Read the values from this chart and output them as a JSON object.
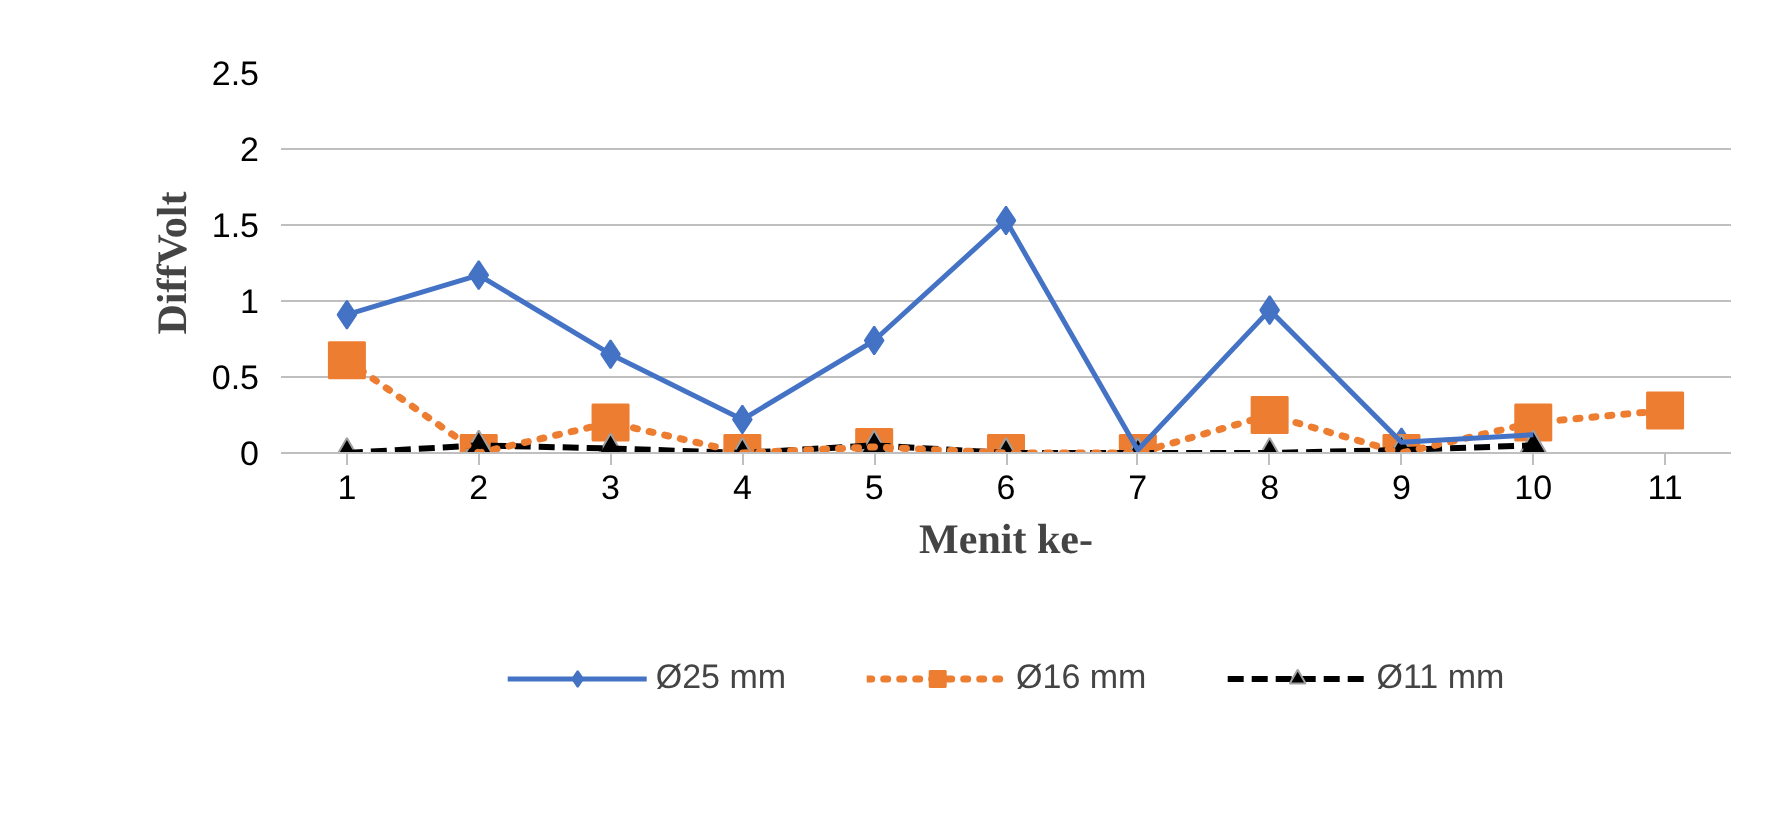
{
  "chart_data": {
    "type": "line",
    "xlabel": "Menit ke-",
    "ylabel": "DiffVolt",
    "categories": [
      "1",
      "2",
      "3",
      "4",
      "5",
      "6",
      "7",
      "8",
      "9",
      "10",
      "11"
    ],
    "ylim": [
      0,
      2.5
    ],
    "yticks": [
      0,
      0.5,
      1,
      1.5,
      2,
      2.5
    ],
    "grid": "y",
    "legend": "bottom",
    "series": [
      {
        "name": "Ø25 mm",
        "color": "#4472c4",
        "marker": "diamond",
        "line_style": "solid",
        "values": [
          0.91,
          1.17,
          0.65,
          0.22,
          0.74,
          1.53,
          0.02,
          0.94,
          0.07,
          0.12,
          null
        ]
      },
      {
        "name": "Ø16 mm",
        "color": "#ed7d31",
        "marker": "square",
        "line_style": "dotted",
        "values": [
          0.61,
          0,
          0.2,
          0,
          0.04,
          0,
          0,
          0.25,
          0,
          0.2,
          0.28
        ]
      },
      {
        "name": "Ø11 mm",
        "color": "#000000",
        "marker": "triangle",
        "line_style": "dashed",
        "values": [
          0,
          0.05,
          0.03,
          0,
          0.05,
          0,
          0,
          0,
          0.02,
          0.05,
          null
        ]
      }
    ]
  }
}
